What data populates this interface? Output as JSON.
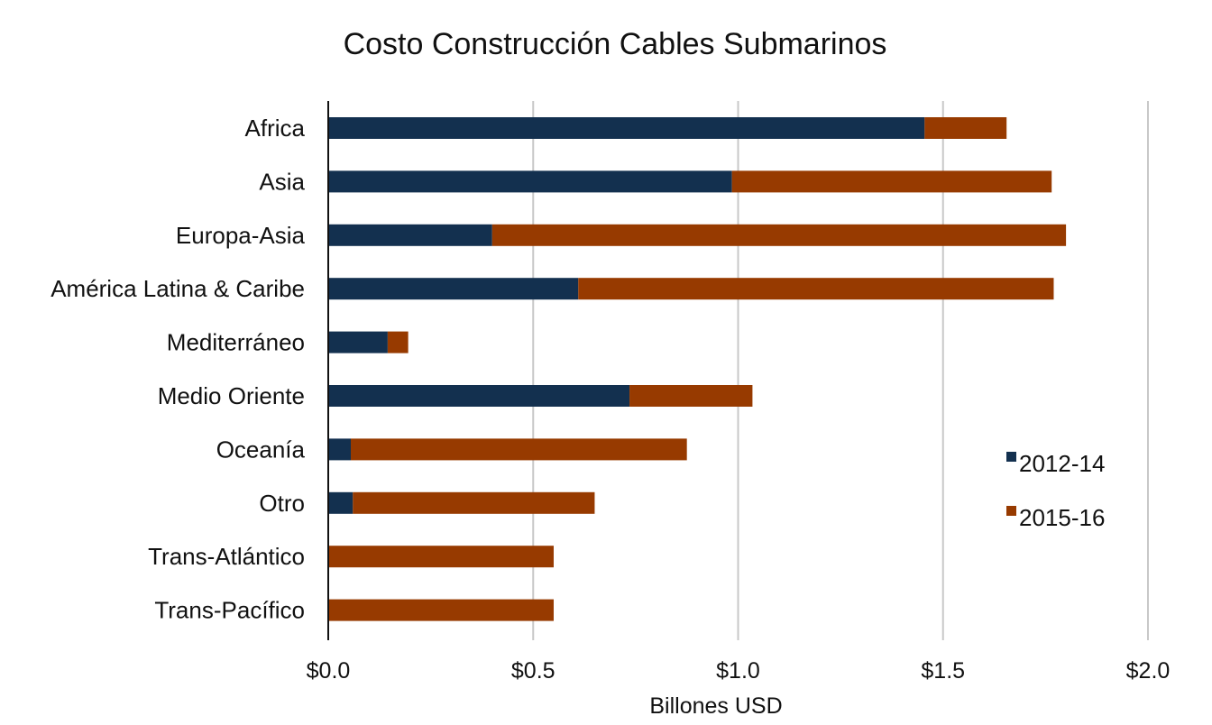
{
  "chart_data": {
    "type": "bar",
    "orientation": "horizontal",
    "stacked": true,
    "title": "Costo Construcción Cables Submarinos",
    "xlabel": "Billones USD",
    "ylabel": "",
    "xlim": [
      0,
      2.0
    ],
    "x_ticks": [
      0,
      0.5,
      1.0,
      1.5,
      2.0
    ],
    "x_tick_labels": [
      "$0.0",
      "$0.5",
      "$1.0",
      "$1.5",
      "$2.0"
    ],
    "grid": "vertical",
    "legend_position": "right",
    "categories": [
      "Africa",
      "Asia",
      "Europa-Asia",
      "América Latina & Caribe",
      "Mediterráneo",
      "Medio Oriente",
      "Oceanía",
      "Otro",
      "Trans-Atlántico",
      "Trans-Pacífico"
    ],
    "series": [
      {
        "name": "2012-14",
        "color": "#13304f",
        "values": [
          1.455,
          0.985,
          0.4,
          0.61,
          0.145,
          0.735,
          0.055,
          0.06,
          0.0,
          0.0
        ]
      },
      {
        "name": "2015-16",
        "color": "#973a00",
        "values": [
          0.2,
          0.78,
          1.4,
          1.16,
          0.05,
          0.3,
          0.82,
          0.59,
          0.55,
          0.55
        ]
      }
    ]
  }
}
